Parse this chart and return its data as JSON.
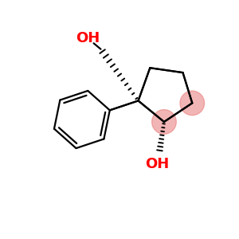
{
  "bg_color": "#ffffff",
  "bond_color": "#000000",
  "oh_color": "#ff0000",
  "highlight_color": "#e87878",
  "highlight_alpha": 0.55,
  "figsize": [
    3.0,
    3.0
  ],
  "dpi": 100,
  "bond_lw": 1.6,
  "oh_fontsize": 13
}
